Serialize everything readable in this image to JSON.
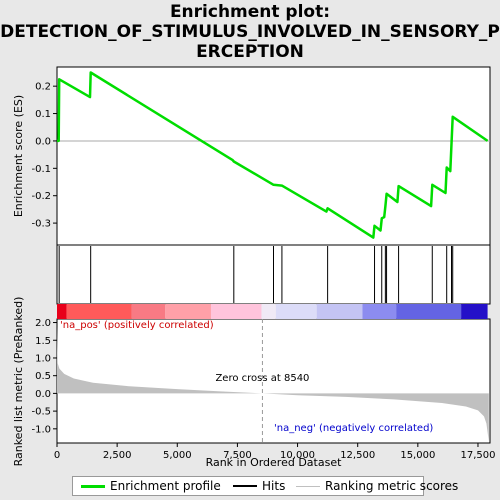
{
  "title_line1": "Enrichment plot:",
  "title_line2": "DETECTION_OF_STIMULUS_INVOLVED_IN_SENSORY_P",
  "title_line3": "ERCEPTION",
  "colors": {
    "profile": "#00dd00",
    "hits": "#000000",
    "metric_fill": "#c0c0c0",
    "zero_line": "#aaaaaa",
    "pos_label": "#cc0000",
    "neg_label": "#0000cc"
  },
  "legend": {
    "profile": "Enrichment profile",
    "hits": "Hits",
    "metric": "Ranking metric scores"
  },
  "chart_data": [
    {
      "type": "line",
      "name": "enrichment-profile",
      "ylabel": "Enrichment score (ES)",
      "xlim": [
        0,
        18000
      ],
      "ylim": [
        -0.38,
        0.27
      ],
      "yticks": [
        0.2,
        0.1,
        0.0,
        -0.1,
        -0.2,
        -0.3
      ],
      "ytick_labels": [
        "0.2",
        "0.1",
        "0.0",
        "-0.1",
        "-0.2",
        "-0.3"
      ],
      "grid": false,
      "x": [
        0,
        70,
        90,
        1370,
        1400,
        7300,
        7350,
        9000,
        9350,
        11200,
        11250,
        13150,
        13200,
        13450,
        13500,
        13600,
        13650,
        13700,
        14150,
        14200,
        15550,
        15600,
        16150,
        16200,
        16350,
        16400,
        16450,
        17900
      ],
      "y": [
        0.0,
        0.0,
        0.225,
        0.16,
        0.25,
        -0.07,
        -0.075,
        -0.16,
        -0.163,
        -0.258,
        -0.246,
        -0.353,
        -0.31,
        -0.327,
        -0.282,
        -0.278,
        -0.238,
        -0.193,
        -0.223,
        -0.165,
        -0.238,
        -0.16,
        -0.19,
        -0.097,
        -0.11,
        -0.01,
        0.088,
        0.0
      ]
    },
    {
      "type": "scatter",
      "name": "hits",
      "hits": [
        90,
        1400,
        7350,
        9000,
        9350,
        11250,
        13200,
        13500,
        13650,
        13700,
        14200,
        15600,
        16200,
        16400,
        16450
      ]
    },
    {
      "type": "area",
      "name": "ranked-list-metric",
      "xlabel": "Rank in Ordered Dataset",
      "ylabel": "Ranked list metric (PreRanked)",
      "xlim": [
        0,
        18000
      ],
      "ylim": [
        -1.4,
        2.1
      ],
      "xticks": [
        0,
        2500,
        5000,
        7500,
        10000,
        12500,
        15000,
        17500
      ],
      "xtick_labels": [
        "0",
        "2,500",
        "5,000",
        "7,500",
        "10,000",
        "12,500",
        "15,000",
        "17,500"
      ],
      "yticks": [
        2.0,
        1.5,
        1.0,
        0.5,
        0.0,
        -0.5,
        -1.0
      ],
      "ytick_labels": [
        "2.0",
        "1.5",
        "1.0",
        "0.5",
        "0.0",
        "-0.5",
        "-1.0"
      ],
      "x": [
        0,
        30,
        100,
        300,
        700,
        1500,
        3000,
        5000,
        7000,
        8540,
        10000,
        12000,
        14000,
        16000,
        17000,
        17500,
        17750,
        17850,
        17900,
        17950
      ],
      "y": [
        1.9,
        0.85,
        0.7,
        0.55,
        0.42,
        0.3,
        0.2,
        0.12,
        0.05,
        0.0,
        -0.05,
        -0.1,
        -0.17,
        -0.27,
        -0.37,
        -0.48,
        -0.65,
        -0.85,
        -1.1,
        -1.35
      ],
      "zero_cross_label": "Zero cross at 8540",
      "zero_cross": 8540,
      "pos_label": "'na_pos' (positively correlated)",
      "neg_label": "'na_neg' (negatively correlated)"
    },
    {
      "type": "heatmap",
      "name": "rank-color-bar",
      "segments": [
        {
          "from": 0,
          "to": 400,
          "color": "#e8001a"
        },
        {
          "from": 400,
          "to": 3100,
          "color": "#ff5a5a"
        },
        {
          "from": 3100,
          "to": 4500,
          "color": "#f87a84"
        },
        {
          "from": 4500,
          "to": 6400,
          "color": "#ffa0a8"
        },
        {
          "from": 6400,
          "to": 8500,
          "color": "#ffc4dc"
        },
        {
          "from": 8500,
          "to": 9100,
          "color": "#f0eaf6"
        },
        {
          "from": 9100,
          "to": 10800,
          "color": "#dcdcf8"
        },
        {
          "from": 10800,
          "to": 12700,
          "color": "#c4c4f4"
        },
        {
          "from": 12700,
          "to": 14100,
          "color": "#8c8cf0"
        },
        {
          "from": 14100,
          "to": 16800,
          "color": "#6464e4"
        },
        {
          "from": 16800,
          "to": 17900,
          "color": "#2410c8"
        }
      ]
    }
  ]
}
